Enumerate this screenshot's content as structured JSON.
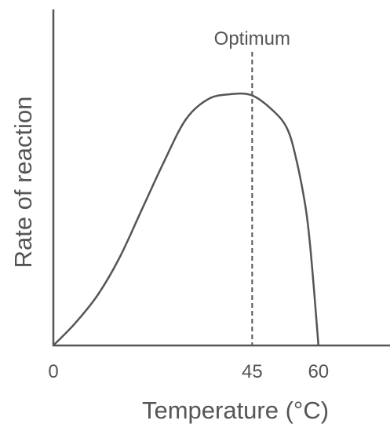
{
  "chart_data": {
    "type": "line",
    "title": "",
    "xlabel": "Temperature (°C)",
    "ylabel": "Rate of reaction",
    "x_ticks": [
      "0",
      "45",
      "60"
    ],
    "xlim": [
      0,
      63
    ],
    "ylim": [
      0,
      1
    ],
    "grid": false,
    "legend": "none",
    "annotations": [
      {
        "label": "Optimum",
        "x": 45,
        "style": "dashed-vertical"
      }
    ],
    "series": [
      {
        "x": [
          0,
          5,
          10,
          15,
          20,
          25,
          30,
          35,
          40,
          45,
          50,
          53,
          55,
          57,
          58,
          59,
          60
        ],
        "values": [
          0,
          0.09,
          0.2,
          0.35,
          0.54,
          0.73,
          0.9,
          0.98,
          1.0,
          0.995,
          0.93,
          0.86,
          0.74,
          0.56,
          0.42,
          0.22,
          0
        ]
      }
    ]
  },
  "colors": {
    "ink": "#555555",
    "background": "#ffffff"
  }
}
